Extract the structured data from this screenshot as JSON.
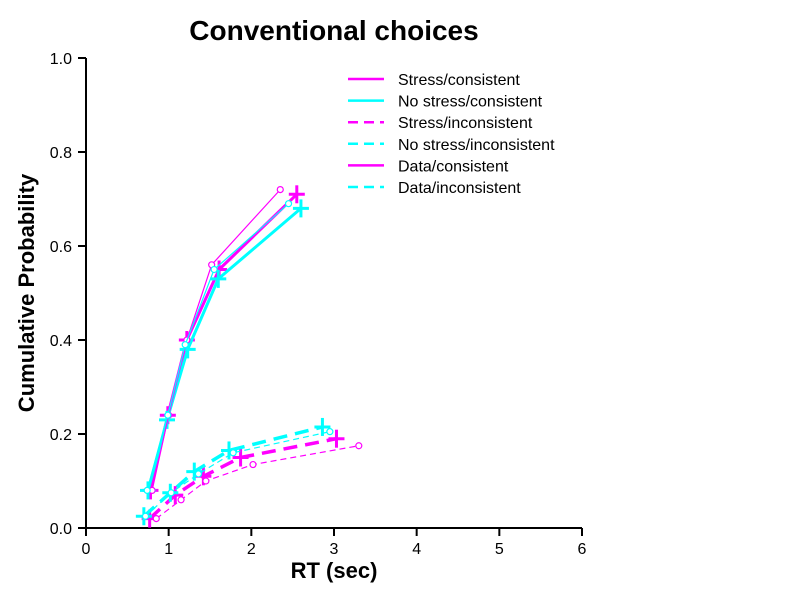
{
  "chart_data": {
    "type": "line",
    "title": "Conventional choices",
    "xlabel": "RT (sec)",
    "ylabel": "Cumulative Probability",
    "xlim": [
      0,
      6
    ],
    "ylim": [
      0,
      1
    ],
    "xticks": [
      "0",
      "1",
      "2",
      "3",
      "4",
      "5",
      "6"
    ],
    "yticks": [
      "0.0",
      "0.2",
      "0.4",
      "0.6",
      "0.8",
      "1.0"
    ],
    "grid": false,
    "legend_position": "top-right",
    "colors": {
      "stress": "#ff00ff",
      "nostress": "#00ffff"
    },
    "series": [
      {
        "name": "Stress/consistent",
        "style": "model-solid",
        "color": "#ff00ff",
        "x": [
          0.78,
          0.99,
          1.22,
          1.61,
          2.55
        ],
        "y": [
          0.08,
          0.24,
          0.4,
          0.55,
          0.71
        ]
      },
      {
        "name": "No stress/consistent",
        "style": "model-solid",
        "color": "#00ffff",
        "x": [
          0.75,
          0.98,
          1.23,
          1.6,
          2.6
        ],
        "y": [
          0.08,
          0.23,
          0.38,
          0.53,
          0.68
        ]
      },
      {
        "name": "Stress/inconsistent",
        "style": "model-dashed",
        "color": "#ff00ff",
        "x": [
          0.77,
          1.08,
          1.42,
          1.87,
          3.03
        ],
        "y": [
          0.02,
          0.07,
          0.11,
          0.15,
          0.19
        ]
      },
      {
        "name": "No stress/inconsistent",
        "style": "model-dashed",
        "color": "#00ffff",
        "x": [
          0.7,
          1.02,
          1.31,
          1.73,
          2.86
        ],
        "y": [
          0.025,
          0.075,
          0.12,
          0.165,
          0.215
        ]
      },
      {
        "name": "Data/consistent",
        "style": "data-solid",
        "color": "#ff00ff",
        "x": [
          0.8,
          1.0,
          1.22,
          1.52,
          2.35
        ],
        "y": [
          0.08,
          0.24,
          0.4,
          0.56,
          0.72
        ]
      },
      {
        "name": "",
        "style": "data-solid",
        "color": "#00ffff",
        "x": [
          0.74,
          0.99,
          1.2,
          1.55,
          2.45
        ],
        "y": [
          0.08,
          0.24,
          0.39,
          0.55,
          0.69
        ]
      },
      {
        "name": "Data/inconsistent",
        "style": "data-dashed",
        "color": "#ff00ff",
        "x": [
          0.85,
          1.15,
          1.45,
          2.02,
          3.3
        ],
        "y": [
          0.02,
          0.06,
          0.1,
          0.135,
          0.175
        ]
      },
      {
        "name": "",
        "style": "data-dashed",
        "color": "#00ffff",
        "x": [
          0.72,
          1.03,
          1.36,
          1.78,
          2.95
        ],
        "y": [
          0.025,
          0.075,
          0.115,
          0.16,
          0.205
        ]
      }
    ],
    "legend": [
      {
        "label": "Stress/consistent",
        "color": "#ff00ff",
        "dash": false
      },
      {
        "label": "No stress/consistent",
        "color": "#00ffff",
        "dash": false
      },
      {
        "label": "Stress/inconsistent",
        "color": "#ff00ff",
        "dash": true
      },
      {
        "label": "No stress/inconsistent",
        "color": "#00ffff",
        "dash": true
      },
      {
        "label": "Data/consistent",
        "color": "#ff00ff",
        "dash": false
      },
      {
        "label": "Data/inconsistent",
        "color": "#00ffff",
        "dash": true
      }
    ]
  }
}
